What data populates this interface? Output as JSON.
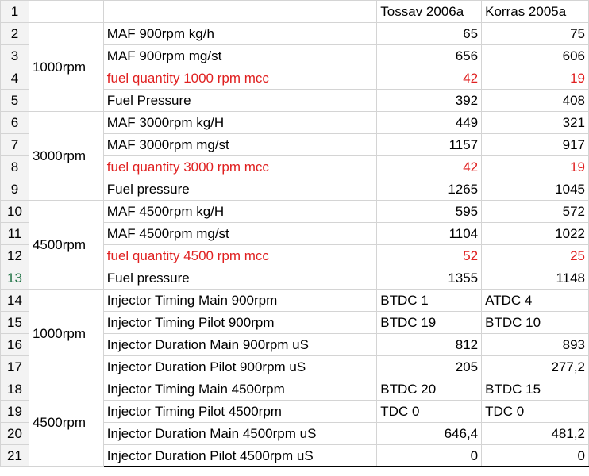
{
  "columns": {
    "col_c": "Tossav 2006a",
    "col_d": "Korras 2005a"
  },
  "rows": [
    {
      "num": "1",
      "label": "",
      "c": "Tossav 2006a",
      "d": "Korras 2005a"
    },
    {
      "num": "2",
      "label": "MAF 900rpm kg/h",
      "c": "65",
      "d": "75"
    },
    {
      "num": "3",
      "label": "MAF 900rpm mg/st",
      "c": "656",
      "d": "606"
    },
    {
      "num": "4",
      "label": "fuel quantity 1000 rpm mcc",
      "c": "42",
      "d": "19"
    },
    {
      "num": "5",
      "label": "Fuel Pressure",
      "c": "392",
      "d": "408"
    },
    {
      "num": "6",
      "label": "MAF 3000rpm kg/H",
      "c": "449",
      "d": "321"
    },
    {
      "num": "7",
      "label": "MAF 3000rpm mg/st",
      "c": "1157",
      "d": "917"
    },
    {
      "num": "8",
      "label": "fuel quantity 3000 rpm mcc",
      "c": "42",
      "d": "19"
    },
    {
      "num": "9",
      "label": "Fuel pressure",
      "c": "1265",
      "d": "1045"
    },
    {
      "num": "10",
      "label": "MAF 4500rpm kg/H",
      "c": "595",
      "d": "572"
    },
    {
      "num": "11",
      "label": "MAF 4500rpm mg/st",
      "c": "1104",
      "d": "1022"
    },
    {
      "num": "12",
      "label": "fuel quantity 4500 rpm mcc",
      "c": "52",
      "d": "25"
    },
    {
      "num": "13",
      "label": "Fuel pressure",
      "c": "1355",
      "d": "1148"
    },
    {
      "num": "14",
      "label": "Injector Timing Main 900rpm",
      "c": "BTDC 1",
      "d": "ATDC 4"
    },
    {
      "num": "15",
      "label": "Injector Timing Pilot 900rpm",
      "c": "BTDC 19",
      "d": "BTDC 10"
    },
    {
      "num": "16",
      "label": "Injector Duration Main 900rpm uS",
      "c": "812",
      "d": "893"
    },
    {
      "num": "17",
      "label": "Injector Duration Pilot 900rpm uS",
      "c": "205",
      "d": "277,2"
    },
    {
      "num": "18",
      "label": "Injector Timing Main 4500rpm",
      "c": "BTDC 20",
      "d": "BTDC 15"
    },
    {
      "num": "19",
      "label": "Injector Timing Pilot 4500rpm",
      "c": "TDC 0",
      "d": "TDC 0"
    },
    {
      "num": "20",
      "label": "Injector Duration Main 4500rpm uS",
      "c": "646,4",
      "d": "481,2"
    },
    {
      "num": "21",
      "label": "Injector Duration Pilot 4500rpm uS",
      "c": "0",
      "d": "0"
    }
  ],
  "groups": {
    "g1": "1000rpm",
    "g2": "3000rpm",
    "g3": "4500rpm",
    "g4": "1000rpm",
    "g5": "4500rpm"
  },
  "colors": {
    "highlight_text": "#e02020",
    "selected_row_number": "#1f7244"
  }
}
